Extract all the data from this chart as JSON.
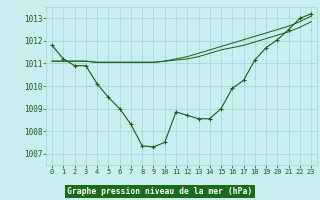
{
  "title": "Graphe pression niveau de la mer (hPa)",
  "hours": [
    0,
    1,
    2,
    3,
    4,
    5,
    6,
    7,
    8,
    9,
    10,
    11,
    12,
    13,
    14,
    15,
    16,
    17,
    18,
    19,
    20,
    21,
    22,
    23
  ],
  "line_main": [
    1011.8,
    1011.2,
    1010.9,
    1010.9,
    1010.1,
    1009.5,
    1009.0,
    1008.3,
    1007.35,
    1007.3,
    1007.5,
    1008.85,
    1008.7,
    1008.55,
    1008.55,
    1009.0,
    1009.9,
    1010.25,
    1011.15,
    1011.7,
    1012.05,
    1012.5,
    1013.0,
    1013.2
  ],
  "line2": [
    1011.1,
    1011.1,
    1011.1,
    1011.1,
    1011.05,
    1011.05,
    1011.05,
    1011.05,
    1011.05,
    1011.05,
    1011.1,
    1011.15,
    1011.2,
    1011.3,
    1011.45,
    1011.6,
    1011.7,
    1011.8,
    1011.95,
    1012.1,
    1012.25,
    1012.4,
    1012.6,
    1012.85
  ],
  "line3": [
    1011.1,
    1011.1,
    1011.1,
    1011.1,
    1011.05,
    1011.05,
    1011.05,
    1011.05,
    1011.05,
    1011.05,
    1011.1,
    1011.2,
    1011.3,
    1011.45,
    1011.6,
    1011.75,
    1011.9,
    1012.05,
    1012.2,
    1012.35,
    1012.5,
    1012.65,
    1012.85,
    1013.1
  ],
  "ylim": [
    1006.5,
    1013.5
  ],
  "yticks": [
    1007,
    1008,
    1009,
    1010,
    1011,
    1012,
    1013
  ],
  "line_color": "#1a5c1a",
  "bg_color": "#c8eef0",
  "grid_color": "#a0d4d4",
  "title_bg": "#1a6b1a",
  "title_color": "#ffffff",
  "tick_label_fontsize": 5.0,
  "ytick_label_fontsize": 5.5
}
